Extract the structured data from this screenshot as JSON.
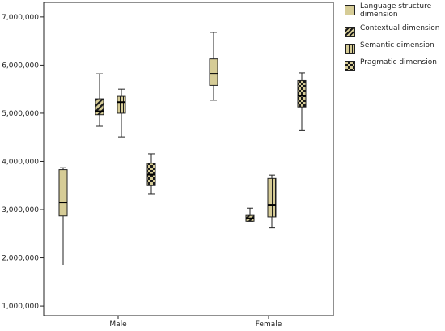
{
  "chart_data": {
    "type": "boxplot",
    "categories": [
      "Male",
      "Female"
    ],
    "ylim": [
      800000,
      7300000
    ],
    "yticks": [
      1000000,
      2000000,
      3000000,
      4000000,
      5000000,
      6000000,
      7000000
    ],
    "ytick_labels": [
      "1,000,000",
      "2,000,000",
      "3,000,000",
      "4,000,000",
      "5,000,000",
      "6,000,000",
      "7,000,000"
    ],
    "grid": false,
    "legend_position": "right",
    "series": [
      {
        "name": "Language structure dimension",
        "pattern": "plain",
        "boxes": [
          {
            "category": "Male",
            "min": 1850000,
            "q1": 2870000,
            "median": 3150000,
            "q3": 3830000,
            "max": 3870000
          },
          {
            "category": "Female",
            "min": 5270000,
            "q1": 5580000,
            "median": 5820000,
            "q3": 6130000,
            "max": 6680000
          }
        ]
      },
      {
        "name": "Contextual dimension",
        "pattern": "diagonal",
        "boxes": [
          {
            "category": "Male",
            "min": 4730000,
            "q1": 4970000,
            "median": 5040000,
            "q3": 5300000,
            "max": 5820000
          },
          {
            "category": "Female",
            "min": 2760000,
            "q1": 2760000,
            "median": 2820000,
            "q3": 2880000,
            "max": 3030000
          }
        ]
      },
      {
        "name": "Semantic dimension",
        "pattern": "vertical-lines",
        "boxes": [
          {
            "category": "Male",
            "min": 4510000,
            "q1": 5000000,
            "median": 5230000,
            "q3": 5350000,
            "max": 5500000
          },
          {
            "category": "Female",
            "min": 2620000,
            "q1": 2850000,
            "median": 3100000,
            "q3": 3650000,
            "max": 3720000
          }
        ]
      },
      {
        "name": "Pragmatic dimension",
        "pattern": "checker",
        "boxes": [
          {
            "category": "Male",
            "min": 3320000,
            "q1": 3500000,
            "median": 3730000,
            "q3": 3960000,
            "max": 4160000
          },
          {
            "category": "Female",
            "min": 4640000,
            "q1": 5130000,
            "median": 5360000,
            "q3": 5680000,
            "max": 5840000
          }
        ]
      }
    ]
  },
  "legend": {
    "items": [
      {
        "label": "Language structure dimension",
        "pattern": "plain"
      },
      {
        "label": "Contextual dimension",
        "pattern": "diagonal"
      },
      {
        "label": "Semantic dimension",
        "pattern": "vertical-lines"
      },
      {
        "label": "Pragmatic dimension",
        "pattern": "checker"
      }
    ]
  },
  "colors": {
    "box_fill": "#d6cc96",
    "pattern_ink": "#1a1a1a",
    "whisker": "#222222",
    "axis": "#222222",
    "background": "#ffffff"
  }
}
